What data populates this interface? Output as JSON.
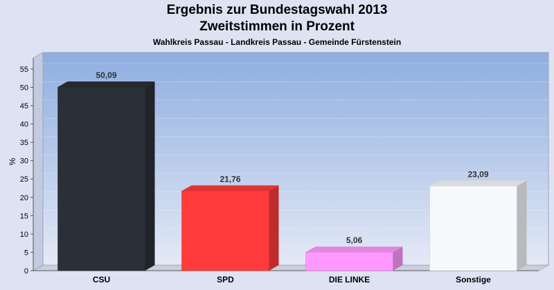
{
  "chart_data": {
    "type": "bar",
    "title": "Ergebnis zur Bundestagswahl 2013",
    "subtitle1": "Zweitstimmen in Prozent",
    "subtitle2": "Wahlkreis Passau - Landkreis Passau - Gemeinde Fürstenstein",
    "ylabel": "%",
    "categories": [
      "CSU",
      "SPD",
      "DIE LINKE",
      "Sonstige"
    ],
    "values": [
      50.09,
      21.76,
      5.06,
      23.09
    ],
    "value_labels": [
      "50,09",
      "21,76",
      "5,06",
      "23,09"
    ],
    "colors": [
      "#2b2f37",
      "#ff3b3b",
      "#ff99ff",
      "#f7f8fb"
    ],
    "yticks": [
      0,
      5,
      10,
      15,
      20,
      25,
      30,
      35,
      40,
      45,
      50,
      55
    ],
    "ylim": [
      0,
      58
    ],
    "grid": true,
    "legend": "none"
  }
}
